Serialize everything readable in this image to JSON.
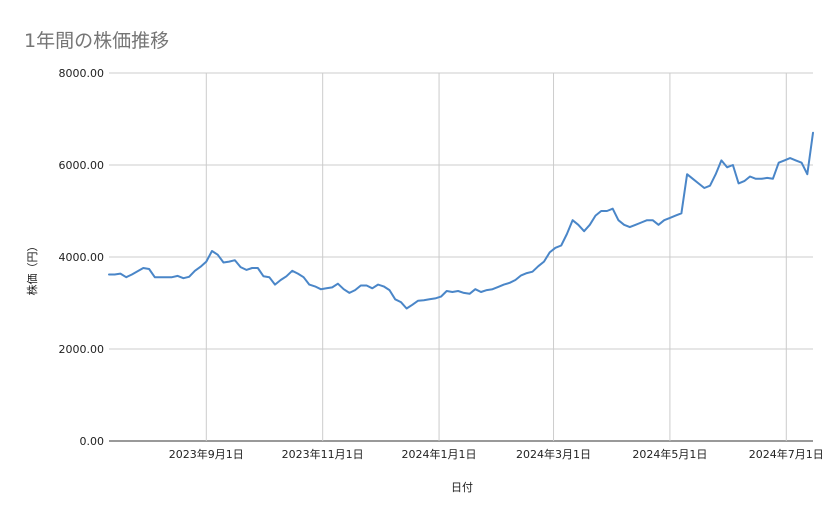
{
  "chart_data": {
    "type": "line",
    "title": "1年間の株価推移",
    "xlabel": "日付",
    "ylabel": "株価（円）",
    "ylim": [
      0,
      8000
    ],
    "y_ticks": [
      "8000.00",
      "6000.00",
      "4000.00",
      "2000.00",
      "0.00"
    ],
    "x_ticks": [
      "2023年9月1日",
      "2023年11月1日",
      "2024年1月1日",
      "2024年3月1日",
      "2024年5月1日",
      "2024年7月1日"
    ],
    "x_range": [
      "2023-07-12",
      "2024-07-15"
    ],
    "grid": true,
    "series": [
      {
        "color": "#4a86c8",
        "x": [
          "2023-07-12",
          "2023-07-15",
          "2023-07-18",
          "2023-07-21",
          "2023-07-24",
          "2023-07-27",
          "2023-07-30",
          "2023-08-02",
          "2023-08-05",
          "2023-08-08",
          "2023-08-11",
          "2023-08-14",
          "2023-08-17",
          "2023-08-20",
          "2023-08-23",
          "2023-08-26",
          "2023-08-29",
          "2023-09-01",
          "2023-09-04",
          "2023-09-07",
          "2023-09-10",
          "2023-09-13",
          "2023-09-16",
          "2023-09-19",
          "2023-09-22",
          "2023-09-25",
          "2023-09-28",
          "2023-10-01",
          "2023-10-04",
          "2023-10-07",
          "2023-10-10",
          "2023-10-13",
          "2023-10-16",
          "2023-10-19",
          "2023-10-22",
          "2023-10-25",
          "2023-10-28",
          "2023-10-31",
          "2023-11-03",
          "2023-11-06",
          "2023-11-09",
          "2023-11-12",
          "2023-11-15",
          "2023-11-18",
          "2023-11-21",
          "2023-11-24",
          "2023-11-27",
          "2023-11-30",
          "2023-12-03",
          "2023-12-06",
          "2023-12-09",
          "2023-12-12",
          "2023-12-15",
          "2023-12-18",
          "2023-12-21",
          "2023-12-24",
          "2023-12-27",
          "2023-12-30",
          "2024-01-02",
          "2024-01-05",
          "2024-01-08",
          "2024-01-11",
          "2024-01-14",
          "2024-01-17",
          "2024-01-20",
          "2024-01-23",
          "2024-01-26",
          "2024-01-29",
          "2024-02-01",
          "2024-02-04",
          "2024-02-07",
          "2024-02-10",
          "2024-02-13",
          "2024-02-16",
          "2024-02-19",
          "2024-02-22",
          "2024-02-25",
          "2024-02-28",
          "2024-03-02",
          "2024-03-05",
          "2024-03-08",
          "2024-03-11",
          "2024-03-14",
          "2024-03-17",
          "2024-03-20",
          "2024-03-23",
          "2024-03-26",
          "2024-03-29",
          "2024-04-01",
          "2024-04-04",
          "2024-04-07",
          "2024-04-10",
          "2024-04-13",
          "2024-04-16",
          "2024-04-19",
          "2024-04-22",
          "2024-04-25",
          "2024-04-28",
          "2024-05-01",
          "2024-05-04",
          "2024-05-07",
          "2024-05-10",
          "2024-05-13",
          "2024-05-16",
          "2024-05-19",
          "2024-05-22",
          "2024-05-25",
          "2024-05-28",
          "2024-05-31",
          "2024-06-03",
          "2024-06-06",
          "2024-06-09",
          "2024-06-12",
          "2024-06-15",
          "2024-06-18",
          "2024-06-21",
          "2024-06-24",
          "2024-06-27",
          "2024-06-30",
          "2024-07-03",
          "2024-07-06",
          "2024-07-09",
          "2024-07-12",
          "2024-07-15"
        ],
        "values": [
          3620,
          3620,
          3640,
          3560,
          3620,
          3690,
          3760,
          3740,
          3560,
          3560,
          3560,
          3560,
          3590,
          3540,
          3570,
          3700,
          3790,
          3900,
          4130,
          4050,
          3880,
          3900,
          3930,
          3780,
          3720,
          3760,
          3760,
          3580,
          3560,
          3400,
          3500,
          3580,
          3700,
          3640,
          3560,
          3400,
          3360,
          3300,
          3320,
          3340,
          3420,
          3300,
          3220,
          3280,
          3380,
          3380,
          3320,
          3400,
          3360,
          3280,
          3080,
          3020,
          2880,
          2960,
          3050,
          3060,
          3080,
          3100,
          3140,
          3260,
          3240,
          3260,
          3220,
          3200,
          3300,
          3240,
          3280,
          3300,
          3350,
          3400,
          3440,
          3500,
          3600,
          3650,
          3680,
          3800,
          3900,
          4100,
          4200,
          4250,
          4500,
          4800,
          4700,
          4560,
          4700,
          4900,
          5000,
          5000,
          5050,
          4800,
          4700,
          4650,
          4700,
          4750,
          4800,
          4800,
          4700,
          4800,
          4850,
          4900,
          4950,
          5800,
          5700,
          5600,
          5500,
          5550,
          5800,
          6100,
          5950,
          6000,
          5600,
          5650,
          5750,
          5700,
          5700,
          5720,
          5700,
          6050,
          6100,
          6150,
          6100,
          6050,
          5800,
          6700
        ]
      }
    ]
  }
}
